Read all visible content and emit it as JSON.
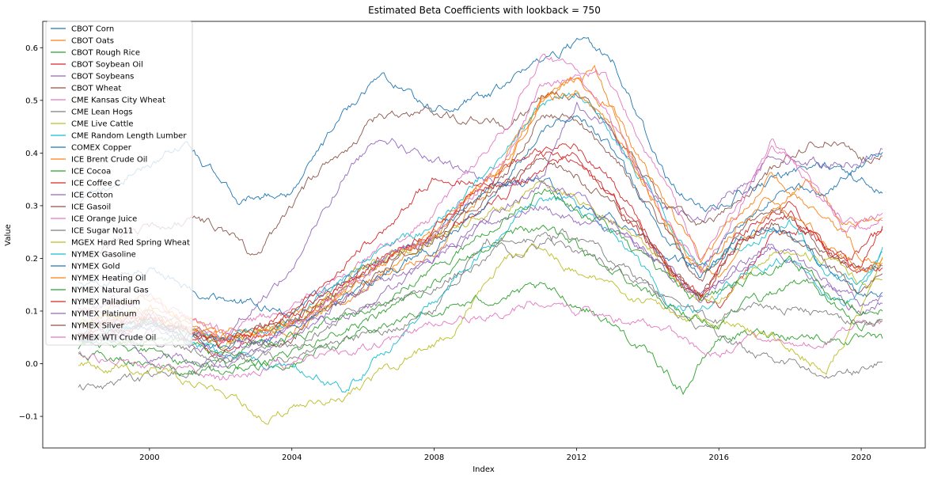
{
  "chart_data": {
    "type": "line",
    "title": "Estimated Beta Coefficients with lookback = 750",
    "xlabel": "Index",
    "ylabel": "Value",
    "xlim": [
      1997.0,
      2021.8
    ],
    "ylim": [
      -0.16,
      0.65
    ],
    "xticks": [
      2000,
      2004,
      2008,
      2012,
      2016,
      2020
    ],
    "xtick_labels": [
      "2000",
      "2004",
      "2008",
      "2012",
      "2016",
      "2020"
    ],
    "yticks": [
      -0.1,
      0.0,
      0.1,
      0.2,
      0.3,
      0.4,
      0.5,
      0.6
    ],
    "ytick_labels": [
      "−0.1",
      "0.0",
      "0.1",
      "0.2",
      "0.3",
      "0.4",
      "0.5",
      "0.6"
    ],
    "grid": false,
    "legend_position": "upper-left",
    "series": [
      {
        "name": "CBOT Corn",
        "color": "#1f77b4",
        "x": [
          1998.0,
          2000.0,
          2001.0,
          2002.5,
          2004.0,
          2006.0,
          2006.6,
          2008.0,
          2010.0,
          2011.0,
          2012.0,
          2013.0,
          2014.5,
          2015.5,
          2016.5,
          2018.0,
          2019.0,
          2020.0,
          2020.6
        ],
        "y": [
          0.3,
          0.38,
          0.42,
          0.31,
          0.33,
          0.52,
          0.55,
          0.48,
          0.52,
          0.58,
          0.61,
          0.58,
          0.35,
          0.29,
          0.32,
          0.36,
          0.38,
          0.35,
          0.33
        ]
      },
      {
        "name": "CBOT Oats",
        "color": "#ff7f0e",
        "x": [
          1998.0,
          2000.0,
          2002.0,
          2004.0,
          2006.0,
          2008.0,
          2009.5,
          2010.5,
          2011.5,
          2012.5,
          2013.5,
          2015.0,
          2016.0,
          2017.5,
          2018.5,
          2019.5,
          2020.6
        ],
        "y": [
          0.1,
          0.12,
          0.06,
          0.08,
          0.15,
          0.22,
          0.33,
          0.45,
          0.52,
          0.56,
          0.4,
          0.2,
          0.17,
          0.3,
          0.35,
          0.26,
          0.27
        ]
      },
      {
        "name": "CBOT Rough Rice",
        "color": "#2ca02c",
        "x": [
          1998.0,
          2000.0,
          2002.0,
          2004.0,
          2006.0,
          2008.0,
          2010.0,
          2011.0,
          2012.5,
          2013.5,
          2015.0,
          2016.0,
          2017.5,
          2019.0,
          2020.6
        ],
        "y": [
          0.05,
          0.02,
          -0.01,
          0.0,
          0.06,
          0.1,
          0.13,
          0.14,
          0.1,
          0.05,
          -0.05,
          0.05,
          0.06,
          0.05,
          0.04
        ]
      },
      {
        "name": "CBOT Soybean Oil",
        "color": "#d62728",
        "x": [
          1998.0,
          2000.0,
          2002.0,
          2004.0,
          2006.0,
          2008.0,
          2010.0,
          2011.0,
          2012.0,
          2013.5,
          2015.0,
          2016.0,
          2017.5,
          2018.5,
          2019.5,
          2020.6
        ],
        "y": [
          0.05,
          0.09,
          0.04,
          0.08,
          0.18,
          0.24,
          0.32,
          0.4,
          0.42,
          0.3,
          0.14,
          0.11,
          0.24,
          0.26,
          0.19,
          0.25
        ]
      },
      {
        "name": "CBOT Soybeans",
        "color": "#9467bd",
        "x": [
          1998.0,
          2000.0,
          2002.0,
          2004.0,
          2005.5,
          2006.5,
          2008.0,
          2010.0,
          2011.0,
          2012.0,
          2013.0,
          2014.5,
          2015.5,
          2016.5,
          2017.5,
          2019.0,
          2020.0,
          2020.6
        ],
        "y": [
          0.12,
          0.1,
          0.05,
          0.18,
          0.36,
          0.44,
          0.38,
          0.34,
          0.35,
          0.5,
          0.44,
          0.3,
          0.27,
          0.33,
          0.4,
          0.38,
          0.39,
          0.41
        ]
      },
      {
        "name": "CBOT Wheat",
        "color": "#8c564b",
        "x": [
          1998.0,
          2000.0,
          2001.0,
          2002.0,
          2003.0,
          2004.0,
          2005.0,
          2006.5,
          2008.0,
          2010.0,
          2011.0,
          2012.0,
          2013.0,
          2014.5,
          2015.5,
          2016.5,
          2018.0,
          2019.0,
          2020.0,
          2020.6
        ],
        "y": [
          0.2,
          0.26,
          0.27,
          0.26,
          0.2,
          0.3,
          0.38,
          0.47,
          0.48,
          0.45,
          0.5,
          0.52,
          0.46,
          0.3,
          0.26,
          0.3,
          0.4,
          0.43,
          0.39,
          0.4
        ]
      },
      {
        "name": "CME Kansas City Wheat",
        "color": "#e377c2",
        "x": [
          1998.0,
          2000.0,
          2002.0,
          2004.0,
          2006.0,
          2008.0,
          2010.0,
          2011.0,
          2012.0,
          2012.8,
          2014.0,
          2015.5,
          2016.5,
          2017.5,
          2018.5,
          2019.5,
          2020.6
        ],
        "y": [
          0.1,
          0.12,
          0.06,
          0.1,
          0.2,
          0.28,
          0.45,
          0.58,
          0.56,
          0.55,
          0.4,
          0.2,
          0.3,
          0.42,
          0.35,
          0.25,
          0.28
        ]
      },
      {
        "name": "CME Lean Hogs",
        "color": "#7f7f7f",
        "x": [
          1998.0,
          2000.0,
          2002.0,
          2004.0,
          2006.0,
          2008.0,
          2009.5,
          2010.5,
          2011.5,
          2013.0,
          2014.5,
          2016.0,
          2017.0,
          2018.0,
          2019.0,
          2020.0,
          2020.6
        ],
        "y": [
          -0.05,
          -0.03,
          0.0,
          0.02,
          0.05,
          0.1,
          0.24,
          0.2,
          0.25,
          0.2,
          0.12,
          0.05,
          0.02,
          0.0,
          -0.02,
          -0.01,
          0.0
        ]
      },
      {
        "name": "CME Live Cattle",
        "color": "#bcbd22",
        "x": [
          1998.0,
          2000.0,
          2002.0,
          2003.3,
          2004.0,
          2005.5,
          2007.0,
          2008.5,
          2010.0,
          2011.0,
          2012.0,
          2013.0,
          2014.5,
          2016.0,
          2017.5,
          2019.0,
          2020.0,
          2020.6
        ],
        "y": [
          0.0,
          -0.01,
          -0.05,
          -0.11,
          -0.08,
          -0.06,
          0.0,
          0.06,
          0.2,
          0.23,
          0.17,
          0.15,
          0.1,
          0.08,
          0.05,
          -0.01,
          0.1,
          0.19
        ]
      },
      {
        "name": "CME Random Length Lumber",
        "color": "#17becf",
        "x": [
          1998.0,
          2000.0,
          2002.0,
          2004.0,
          2005.5,
          2007.0,
          2008.5,
          2010.0,
          2011.0,
          2012.0,
          2013.0,
          2014.5,
          2015.5,
          2016.5,
          2018.0,
          2019.5,
          2020.6
        ],
        "y": [
          0.05,
          0.08,
          0.02,
          -0.01,
          -0.05,
          0.05,
          0.15,
          0.25,
          0.32,
          0.3,
          0.25,
          0.12,
          0.1,
          0.16,
          0.2,
          0.1,
          0.21
        ]
      },
      {
        "name": "COMEX Copper",
        "color": "#1f77b4",
        "x": [
          1998.0,
          2000.0,
          2002.0,
          2004.0,
          2006.0,
          2008.0,
          2010.0,
          2011.0,
          2012.0,
          2013.0,
          2014.5,
          2015.5,
          2016.5,
          2018.0,
          2019.0,
          2020.0,
          2020.6
        ],
        "y": [
          0.15,
          0.18,
          0.12,
          0.1,
          0.18,
          0.25,
          0.35,
          0.36,
          0.3,
          0.28,
          0.2,
          0.18,
          0.26,
          0.34,
          0.32,
          0.38,
          0.41
        ]
      },
      {
        "name": "ICE Brent Crude Oil",
        "color": "#ff7f0e",
        "x": [
          1998.0,
          2000.0,
          2002.0,
          2004.0,
          2006.0,
          2008.0,
          2010.0,
          2011.0,
          2012.0,
          2013.0,
          2014.5,
          2015.5,
          2016.5,
          2017.5,
          2019.0,
          2020.0,
          2020.6
        ],
        "y": [
          0.08,
          0.1,
          0.05,
          0.06,
          0.15,
          0.24,
          0.38,
          0.5,
          0.54,
          0.48,
          0.3,
          0.2,
          0.28,
          0.36,
          0.28,
          0.2,
          0.19
        ]
      },
      {
        "name": "ICE Cocoa",
        "color": "#2ca02c",
        "x": [
          1998.0,
          2000.0,
          2002.0,
          2004.0,
          2006.0,
          2008.0,
          2010.0,
          2011.0,
          2012.0,
          2013.5,
          2015.0,
          2016.0,
          2017.0,
          2018.5,
          2020.0,
          2020.6
        ],
        "y": [
          0.02,
          0.0,
          -0.02,
          0.02,
          0.08,
          0.15,
          0.24,
          0.26,
          0.22,
          0.15,
          0.1,
          0.08,
          0.12,
          0.15,
          0.07,
          0.08
        ]
      },
      {
        "name": "ICE Coffee C",
        "color": "#d62728",
        "x": [
          1998.0,
          2000.0,
          2002.0,
          2004.0,
          2006.0,
          2008.0,
          2010.0,
          2011.0,
          2012.0,
          2013.0,
          2014.5,
          2015.5,
          2016.5,
          2018.0,
          2019.0,
          2020.0,
          2020.6
        ],
        "y": [
          0.05,
          0.07,
          0.02,
          0.1,
          0.22,
          0.35,
          0.34,
          0.36,
          0.4,
          0.31,
          0.19,
          0.12,
          0.25,
          0.3,
          0.21,
          0.17,
          0.18
        ]
      },
      {
        "name": "ICE Cotton",
        "color": "#9467bd",
        "x": [
          1998.0,
          2000.0,
          2002.0,
          2004.0,
          2006.0,
          2008.0,
          2010.0,
          2011.0,
          2012.0,
          2013.0,
          2014.5,
          2015.5,
          2016.5,
          2017.5,
          2019.0,
          2020.0,
          2020.6
        ],
        "y": [
          0.1,
          0.02,
          0.0,
          0.05,
          0.1,
          0.2,
          0.28,
          0.3,
          0.27,
          0.25,
          0.18,
          0.12,
          0.18,
          0.22,
          0.15,
          0.1,
          0.12
        ]
      },
      {
        "name": "ICE Gasoil",
        "color": "#8c564b",
        "x": [
          1998.0,
          2000.0,
          2002.0,
          2004.0,
          2006.0,
          2008.0,
          2010.0,
          2011.0,
          2012.0,
          2013.0,
          2014.5,
          2015.5,
          2016.5,
          2017.5,
          2019.0,
          2020.0,
          2020.6
        ],
        "y": [
          0.06,
          0.08,
          0.03,
          0.05,
          0.15,
          0.24,
          0.36,
          0.48,
          0.46,
          0.4,
          0.25,
          0.15,
          0.24,
          0.3,
          0.22,
          0.17,
          0.19
        ]
      },
      {
        "name": "ICE Orange Juice",
        "color": "#e377c2",
        "x": [
          1998.0,
          2000.0,
          2002.0,
          2004.0,
          2006.0,
          2008.0,
          2010.0,
          2011.0,
          2012.0,
          2013.5,
          2015.0,
          2016.0,
          2017.0,
          2018.5,
          2019.5,
          2020.6
        ],
        "y": [
          0.02,
          0.0,
          -0.03,
          0.0,
          0.03,
          0.07,
          0.1,
          0.12,
          0.1,
          0.08,
          0.05,
          0.01,
          0.05,
          0.04,
          0.06,
          0.08
        ]
      },
      {
        "name": "ICE Sugar No11",
        "color": "#7f7f7f",
        "x": [
          1998.0,
          2000.0,
          2002.0,
          2004.0,
          2006.0,
          2008.0,
          2010.0,
          2011.0,
          2012.0,
          2013.5,
          2015.0,
          2016.0,
          2017.0,
          2018.5,
          2019.5,
          2020.6
        ],
        "y": [
          0.04,
          0.05,
          0.01,
          0.04,
          0.1,
          0.15,
          0.22,
          0.24,
          0.21,
          0.16,
          0.1,
          0.08,
          0.12,
          0.1,
          0.08,
          0.09
        ]
      },
      {
        "name": "MGEX Hard Red Spring Wheat",
        "color": "#bcbd22",
        "x": [
          1998.0,
          2000.0,
          2002.0,
          2004.0,
          2006.0,
          2008.0,
          2010.0,
          2011.0,
          2012.0,
          2013.5,
          2015.0,
          2016.0,
          2017.5,
          2019.0,
          2020.0,
          2020.6
        ],
        "y": [
          0.08,
          0.1,
          0.04,
          0.08,
          0.18,
          0.24,
          0.3,
          0.34,
          0.32,
          0.25,
          0.15,
          0.12,
          0.22,
          0.2,
          0.15,
          0.16
        ]
      },
      {
        "name": "NYMEX Gasoline",
        "color": "#17becf",
        "x": [
          1998.0,
          2000.0,
          2002.0,
          2004.0,
          2006.0,
          2008.0,
          2010.0,
          2011.0,
          2012.0,
          2013.0,
          2014.5,
          2015.5,
          2016.5,
          2018.0,
          2019.0,
          2020.0,
          2020.6
        ],
        "y": [
          0.06,
          0.08,
          0.04,
          0.08,
          0.2,
          0.26,
          0.4,
          0.49,
          0.52,
          0.44,
          0.28,
          0.18,
          0.22,
          0.27,
          0.18,
          0.15,
          0.22
        ]
      },
      {
        "name": "NYMEX Gold",
        "color": "#1f77b4",
        "x": [
          1998.0,
          2000.0,
          2002.0,
          2004.0,
          2006.0,
          2008.0,
          2010.0,
          2011.0,
          2012.0,
          2013.0,
          2014.5,
          2015.5,
          2016.5,
          2017.5,
          2019.0,
          2020.0,
          2020.6
        ],
        "y": [
          0.04,
          0.07,
          0.03,
          0.06,
          0.15,
          0.22,
          0.34,
          0.44,
          0.48,
          0.4,
          0.24,
          0.16,
          0.24,
          0.27,
          0.18,
          0.12,
          0.13
        ]
      },
      {
        "name": "NYMEX Heating Oil",
        "color": "#ff7f0e",
        "x": [
          1998.0,
          2000.0,
          2002.0,
          2004.0,
          2006.0,
          2008.0,
          2010.0,
          2011.0,
          2012.0,
          2013.0,
          2014.5,
          2015.5,
          2016.5,
          2017.5,
          2019.0,
          2020.0,
          2020.6
        ],
        "y": [
          0.07,
          0.09,
          0.04,
          0.07,
          0.17,
          0.25,
          0.38,
          0.5,
          0.52,
          0.45,
          0.27,
          0.17,
          0.26,
          0.32,
          0.23,
          0.18,
          0.2
        ]
      },
      {
        "name": "NYMEX Natural Gas",
        "color": "#2ca02c",
        "x": [
          1998.0,
          2000.0,
          2002.0,
          2004.0,
          2006.0,
          2008.0,
          2010.0,
          2011.0,
          2012.0,
          2013.0,
          2014.5,
          2015.5,
          2016.5,
          2018.0,
          2019.0,
          2020.0,
          2020.6
        ],
        "y": [
          0.03,
          0.05,
          0.02,
          0.05,
          0.1,
          0.18,
          0.28,
          0.33,
          0.3,
          0.25,
          0.16,
          0.12,
          0.15,
          0.2,
          0.14,
          0.1,
          0.11
        ]
      },
      {
        "name": "NYMEX Palladium",
        "color": "#d62728",
        "x": [
          1998.0,
          2000.0,
          2002.0,
          2004.0,
          2006.0,
          2008.0,
          2010.0,
          2011.0,
          2012.0,
          2013.0,
          2014.5,
          2015.5,
          2016.5,
          2018.0,
          2019.0,
          2020.0,
          2020.6
        ],
        "y": [
          0.05,
          0.08,
          0.04,
          0.09,
          0.18,
          0.26,
          0.38,
          0.4,
          0.38,
          0.32,
          0.2,
          0.13,
          0.22,
          0.28,
          0.22,
          0.18,
          0.26
        ]
      },
      {
        "name": "NYMEX Platinum",
        "color": "#9467bd",
        "x": [
          1998.0,
          2000.0,
          2002.0,
          2004.0,
          2006.0,
          2008.0,
          2010.0,
          2011.0,
          2012.0,
          2013.0,
          2014.5,
          2015.5,
          2016.5,
          2017.5,
          2019.0,
          2020.0,
          2020.6
        ],
        "y": [
          0.04,
          0.06,
          0.02,
          0.06,
          0.14,
          0.2,
          0.3,
          0.34,
          0.31,
          0.28,
          0.18,
          0.12,
          0.18,
          0.23,
          0.16,
          0.11,
          0.13
        ]
      },
      {
        "name": "NYMEX Silver",
        "color": "#8c564b",
        "x": [
          1998.0,
          2000.0,
          2002.0,
          2004.0,
          2006.0,
          2008.0,
          2010.0,
          2011.0,
          2012.0,
          2013.0,
          2014.5,
          2015.5,
          2016.5,
          2017.5,
          2019.0,
          2020.0,
          2020.6
        ],
        "y": [
          0.06,
          0.09,
          0.04,
          0.08,
          0.17,
          0.24,
          0.34,
          0.38,
          0.36,
          0.3,
          0.2,
          0.14,
          0.22,
          0.27,
          0.19,
          0.14,
          0.16
        ]
      },
      {
        "name": "NYMEX WTI Crude Oil",
        "color": "#e377c2",
        "x": [
          1998.0,
          2000.0,
          2002.0,
          2004.0,
          2006.0,
          2008.0,
          2010.0,
          2011.0,
          2012.0,
          2013.0,
          2014.5,
          2015.5,
          2016.5,
          2017.5,
          2019.0,
          2020.0,
          2020.6
        ],
        "y": [
          0.07,
          0.09,
          0.04,
          0.07,
          0.17,
          0.25,
          0.39,
          0.52,
          0.55,
          0.46,
          0.27,
          0.17,
          0.29,
          0.42,
          0.3,
          0.25,
          0.27
        ]
      }
    ]
  }
}
